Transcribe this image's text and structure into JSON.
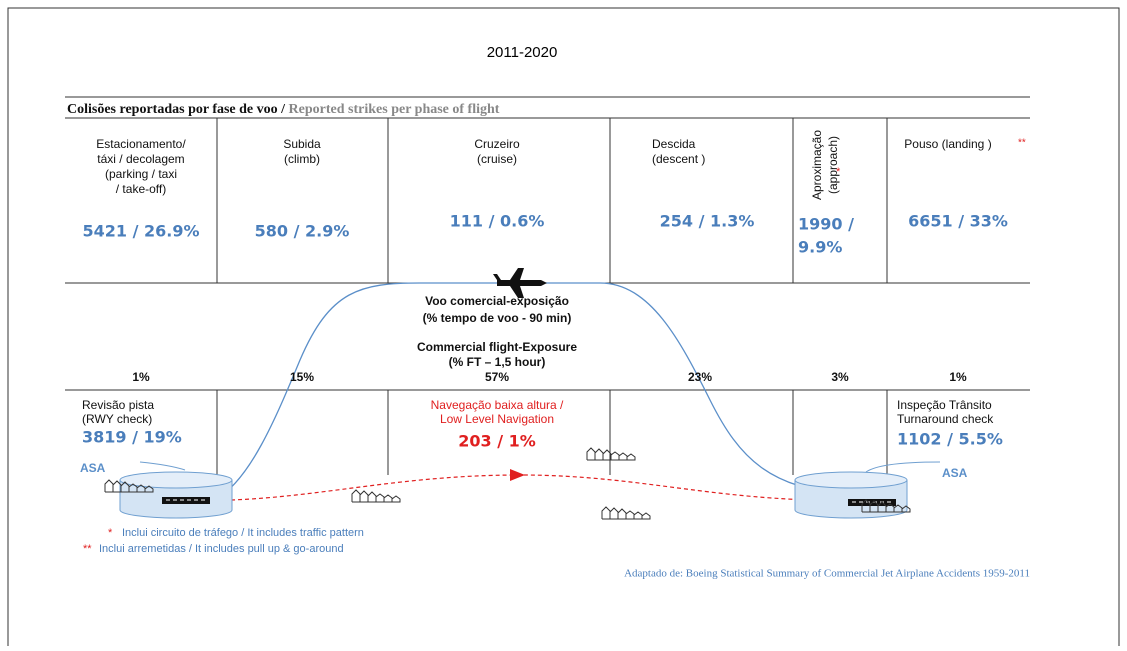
{
  "title": "2011-2020",
  "heading": {
    "pt": "Colisões reportadas por fase de voo /",
    "en": "Reported strikes per phase of flight"
  },
  "phases": [
    {
      "label": [
        "Estacionamento/",
        "táxi / decolagem",
        "(parking / taxi",
        "/ take-off)"
      ],
      "value": [
        "5421 / 26.9%"
      ],
      "exposure": "1%"
    },
    {
      "label": [
        "Subida",
        "(climb)"
      ],
      "value": [
        "580 / 2.9%"
      ],
      "exposure": "15%"
    },
    {
      "label": [
        "Cruzeiro",
        "(cruise)"
      ],
      "value": [
        "111 / 0.6%"
      ],
      "exposure": "57%"
    },
    {
      "label": [
        "Descida",
        "(descent )"
      ],
      "value": [
        "254 / 1.3%"
      ],
      "exposure": "23%"
    },
    {
      "label": [
        "Aproximação",
        "(approach)"
      ],
      "marker": "*",
      "value": [
        "1990 /",
        "9.9%"
      ],
      "exposure": "3%"
    },
    {
      "label": [
        "Pouso (landing )"
      ],
      "marker": "**",
      "value": [
        "6651 / 33%"
      ],
      "exposure": "1%"
    }
  ],
  "exposure_title": [
    "Voo comercial-exposição",
    "(% tempo de voo - 90 min)",
    "Commercial flight-Exposure",
    "(% FT – 1,5 hour)"
  ],
  "ground": [
    {
      "label": [
        "Revisão pista",
        "(RWY check)"
      ],
      "value": "3819 / 19%"
    },
    {
      "label": [
        "Navegação baixa altura /",
        "Low Level Navigation"
      ],
      "value": "203 / 1%"
    },
    {
      "label": [
        "Inspeção Trânsito",
        "Turnaround check"
      ],
      "value": "1102 / 5.5%"
    }
  ],
  "asa": [
    "ASA",
    "ASA"
  ],
  "footnotes": [
    {
      "marker": "*",
      "text": "Inclui circuito de tráfego / It includes traffic pattern"
    },
    {
      "marker": "**",
      "text": "Inclui arremetidas / It includes pull up & go-around"
    }
  ],
  "source": "Adaptado de: Boeing Statistical Summary of Commercial Jet Airplane Accidents 1959-2011"
}
